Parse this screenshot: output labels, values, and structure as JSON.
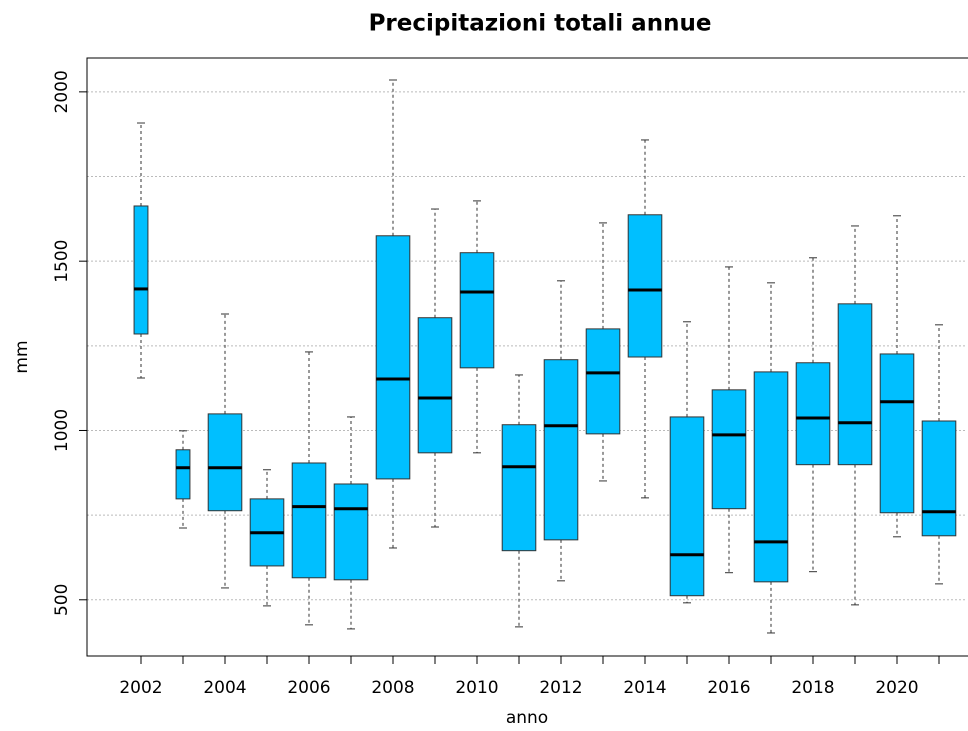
{
  "chart_data": {
    "type": "boxplot",
    "title": "Precipitazioni totali annue",
    "xlabel": "anno",
    "ylabel": "mm",
    "categories": [
      "2002",
      null,
      "2004",
      null,
      "2006",
      null,
      "2008",
      null,
      "2010",
      null,
      "2012",
      null,
      "2014",
      null,
      "2016",
      null,
      "2018",
      null,
      "2020",
      null
    ],
    "boxes": [
      {
        "min": 1155,
        "q1": 1285,
        "median": 1418,
        "q3": 1663,
        "max": 1908
      },
      {
        "min": 712,
        "q1": 798,
        "median": 890,
        "q3": 943,
        "max": 999
      },
      {
        "min": 535,
        "q1": 763,
        "median": 890,
        "q3": 1049,
        "max": 1344
      },
      {
        "min": 482,
        "q1": 600,
        "median": 698,
        "q3": 798,
        "max": 884
      },
      {
        "min": 426,
        "q1": 565,
        "median": 775,
        "q3": 904,
        "max": 1232
      },
      {
        "min": 414,
        "q1": 559,
        "median": 769,
        "q3": 842,
        "max": 1040
      },
      {
        "min": 653,
        "q1": 857,
        "median": 1152,
        "q3": 1575,
        "max": 2035
      },
      {
        "min": 715,
        "q1": 934,
        "median": 1096,
        "q3": 1333,
        "max": 1654
      },
      {
        "min": 934,
        "q1": 1185,
        "median": 1409,
        "q3": 1525,
        "max": 1678
      },
      {
        "min": 420,
        "q1": 645,
        "median": 893,
        "q3": 1017,
        "max": 1164
      },
      {
        "min": 556,
        "q1": 677,
        "median": 1014,
        "q3": 1209,
        "max": 1442
      },
      {
        "min": 851,
        "q1": 990,
        "median": 1170,
        "q3": 1300,
        "max": 1613
      },
      {
        "min": 801,
        "q1": 1217,
        "median": 1415,
        "q3": 1637,
        "max": 1858
      },
      {
        "min": 491,
        "q1": 512,
        "median": 633,
        "q3": 1040,
        "max": 1321
      },
      {
        "min": 580,
        "q1": 769,
        "median": 987,
        "q3": 1120,
        "max": 1483
      },
      {
        "min": 402,
        "q1": 553,
        "median": 671,
        "q3": 1173,
        "max": 1436
      },
      {
        "min": 583,
        "q1": 899,
        "median": 1037,
        "q3": 1200,
        "max": 1510
      },
      {
        "min": 485,
        "q1": 899,
        "median": 1023,
        "q3": 1374,
        "max": 1604
      },
      {
        "min": 686,
        "q1": 757,
        "median": 1085,
        "q3": 1226,
        "max": 1634
      },
      {
        "min": 547,
        "q1": 689,
        "median": 760,
        "q3": 1028,
        "max": 1312
      }
    ],
    "widths": [
      0.33,
      0.33,
      0.8,
      0.8,
      0.8,
      0.8,
      0.8,
      0.8,
      0.8,
      0.8,
      0.8,
      0.8,
      0.8,
      0.8,
      0.8,
      0.8,
      0.8,
      0.8,
      0.8,
      0.8
    ],
    "color": "#00bfff",
    "ylim": [
      334,
      2100
    ],
    "yticks": [
      500,
      1000,
      1500,
      2000
    ],
    "grid_lines": [
      500,
      750,
      1000,
      1250,
      1500,
      1750,
      2000
    ],
    "grid": true
  }
}
